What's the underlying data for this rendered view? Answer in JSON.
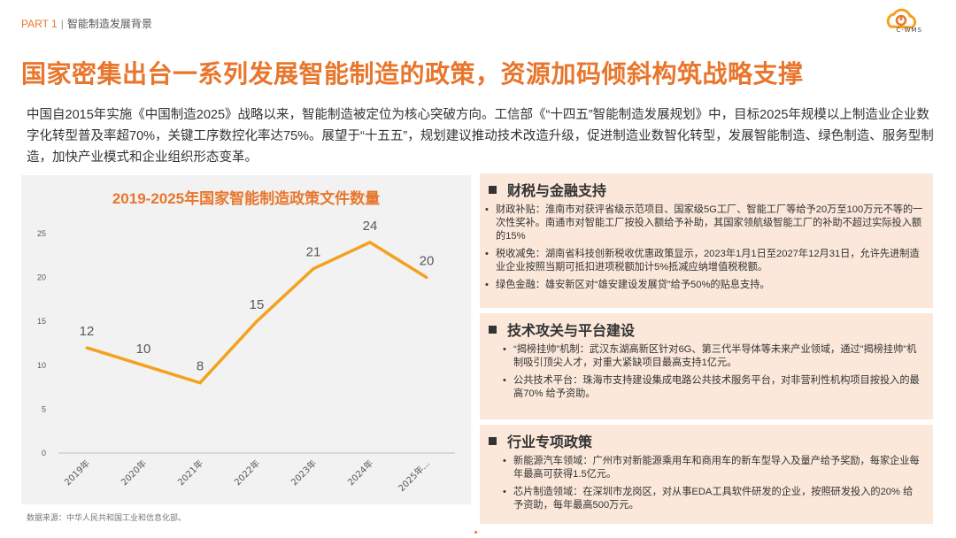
{
  "header": {
    "part": "PART 1",
    "separator": "|",
    "section": "智能制造发展背景",
    "logo_text": "C-WMS"
  },
  "title": "国家密集出台一系列发展智能制造的政策，资源加码倾斜构筑战略支撑",
  "intro": "中国自2015年实施《中国制造2025》战略以来，智能制造被定位为核心突破方向。工信部《“十四五”智能制造发展规划》中，目标2025年规模以上制造业企业数字化转型普及率超70%，关键工序数控化率达75%。展望于“十五五”，规划建议推动技术改造升级，促进制造业数智化转型，发展智能制造、绿色制造、服务型制造，加快产业模式和企业组织形态变革。",
  "chart_data": {
    "type": "line",
    "title": "2019-2025年国家智能制造政策文件数量",
    "categories": [
      "2019年",
      "2020年",
      "2021年",
      "2022年",
      "2023年",
      "2024年",
      "2025年..."
    ],
    "values": [
      12,
      10,
      8,
      15,
      21,
      24,
      20
    ],
    "ylim": [
      0,
      25
    ],
    "yticks": [
      0,
      5,
      10,
      15,
      20,
      25
    ],
    "xlabel": "",
    "ylabel": "",
    "grid": false,
    "color": "#F4A11E"
  },
  "source": "数据来源：中华人民共和国工业和信息化部。",
  "panels": [
    {
      "heading": "财税与金融支持",
      "items": [
        "财政补贴：淮南市对获评省级示范项目、国家级5G工厂、智能工厂等给予20万至100万元不等的一次性奖补。南通市对智能工厂按投入额给予补助，其国家领航级智能工厂的补助不超过实际投入额的15%",
        "税收减免：湖南省科技创新税收优惠政策显示，2023年1月1日至2027年12月31日，允许先进制造业企业按照当期可抵扣进项税额加计5%抵减应纳增值税税额。",
        "绿色金融：雄安新区对“雄安建设发展贷”给予50%的贴息支持。"
      ]
    },
    {
      "heading": "技术攻关与平台建设",
      "items": [
        "“揭榜挂帅”机制：武汉东湖高新区针对6G、第三代半导体等未来产业领域，通过\"揭榜挂帅\"机制吸引顶尖人才，对重大紧缺项目最高支持1亿元。",
        "公共技术平台：珠海市支持建设集成电路公共技术服务平台，对非营利性机构项目按投入的最高70% 给予资助。"
      ]
    },
    {
      "heading": "行业专项政策",
      "items": [
        "新能源汽车领域：广州市对新能源乘用车和商用车的新车型导入及量产给予奖励，每家企业每年最高可获得1.5亿元。",
        "芯片制造领域：在深圳市龙岗区，对从事EDA工具软件研发的企业，按照研发投入的20% 给予资助，每年最高500万元。"
      ]
    }
  ]
}
